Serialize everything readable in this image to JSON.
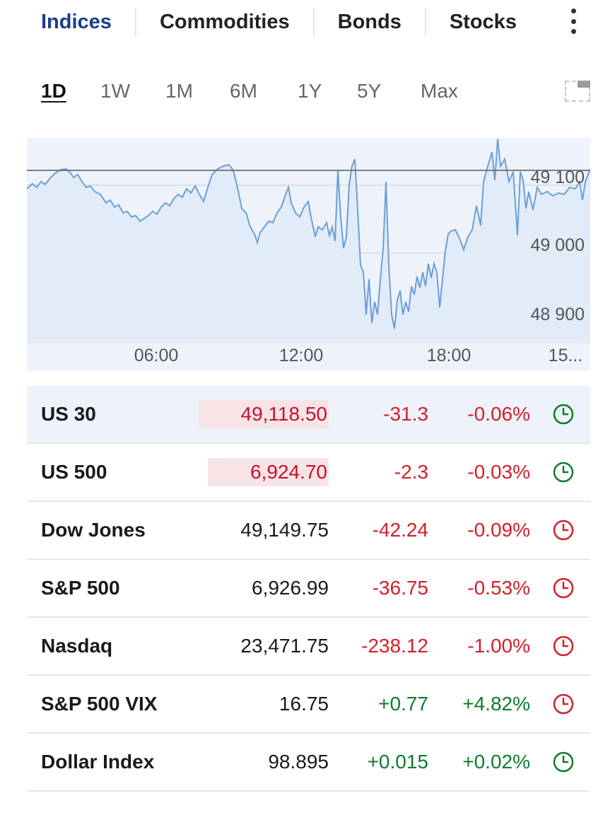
{
  "tabs": [
    {
      "label": "Indices",
      "active": true
    },
    {
      "label": "Commodities",
      "active": false
    },
    {
      "label": "Bonds",
      "active": false
    },
    {
      "label": "Stocks",
      "active": false
    }
  ],
  "ranges": [
    {
      "label": "1D",
      "active": true
    },
    {
      "label": "1W",
      "active": false
    },
    {
      "label": "1M",
      "active": false
    },
    {
      "label": "6M",
      "active": false
    },
    {
      "label": "1Y",
      "active": false
    },
    {
      "label": "5Y",
      "active": false
    },
    {
      "label": "Max",
      "active": false
    }
  ],
  "chart_data": {
    "type": "area",
    "y_ticks": [
      "49 100",
      "49 000",
      "48 900"
    ],
    "x_ticks": [
      "06:00",
      "12:00",
      "18:00",
      "15..."
    ],
    "reference_value": 49118.5,
    "color": "#6c9fd6"
  },
  "colors": {
    "up": "#0f7b2d",
    "down": "#d3202a",
    "accent": "#1b3f8f",
    "selected_row": "#eef2fa"
  },
  "quotes": [
    {
      "name": "US 30",
      "price": "49,118.50",
      "change": "-31.3",
      "pct": "-0.06%",
      "dir": "neg",
      "clock": "green",
      "selected": true,
      "highlight": true
    },
    {
      "name": "US 500",
      "price": "6,924.70",
      "change": "-2.3",
      "pct": "-0.03%",
      "dir": "neg",
      "clock": "green",
      "selected": false,
      "highlight": true
    },
    {
      "name": "Dow Jones",
      "price": "49,149.75",
      "change": "-42.24",
      "pct": "-0.09%",
      "dir": "neg",
      "clock": "red",
      "selected": false,
      "highlight": false
    },
    {
      "name": "S&P 500",
      "price": "6,926.99",
      "change": "-36.75",
      "pct": "-0.53%",
      "dir": "neg",
      "clock": "red",
      "selected": false,
      "highlight": false
    },
    {
      "name": "Nasdaq",
      "price": "23,471.75",
      "change": "-238.12",
      "pct": "-1.00%",
      "dir": "neg",
      "clock": "red",
      "selected": false,
      "highlight": false
    },
    {
      "name": "S&P 500 VIX",
      "price": "16.75",
      "change": "+0.77",
      "pct": "+4.82%",
      "dir": "pos",
      "clock": "red",
      "selected": false,
      "highlight": false
    },
    {
      "name": "Dollar Index",
      "price": "98.895",
      "change": "+0.015",
      "pct": "+0.02%",
      "dir": "pos",
      "clock": "green",
      "selected": false,
      "highlight": false
    }
  ]
}
